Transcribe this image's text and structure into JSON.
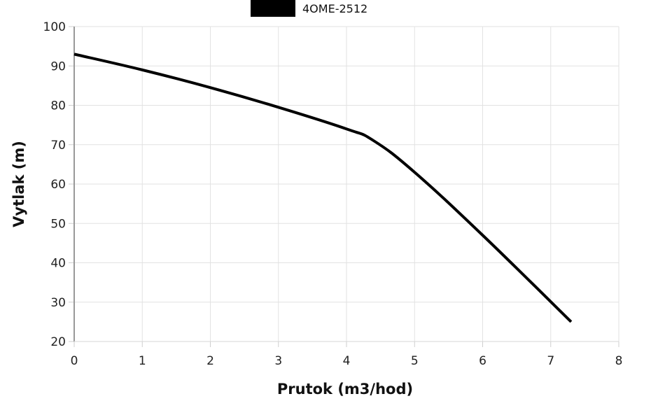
{
  "chart_data": {
    "type": "line",
    "title": "",
    "xlabel": "Prutok (m3/hod)",
    "ylabel": "Vytlak (m)",
    "xlim": [
      0,
      8
    ],
    "ylim": [
      20,
      100
    ],
    "x_ticks": [
      "0",
      "1",
      "2",
      "3",
      "4",
      "5",
      "6",
      "7",
      "8"
    ],
    "y_ticks": [
      "20",
      "30",
      "40",
      "50",
      "60",
      "70",
      "80",
      "90",
      "100"
    ],
    "grid": true,
    "legend_position": "top-center",
    "series": [
      {
        "name": "4OME-2512",
        "color": "#000000",
        "x": [
          0,
          1,
          2,
          3,
          4,
          4.4,
          5,
          6,
          7.3
        ],
        "y": [
          93,
          89,
          84.5,
          79.5,
          74,
          71,
          63,
          47,
          25
        ]
      }
    ]
  }
}
